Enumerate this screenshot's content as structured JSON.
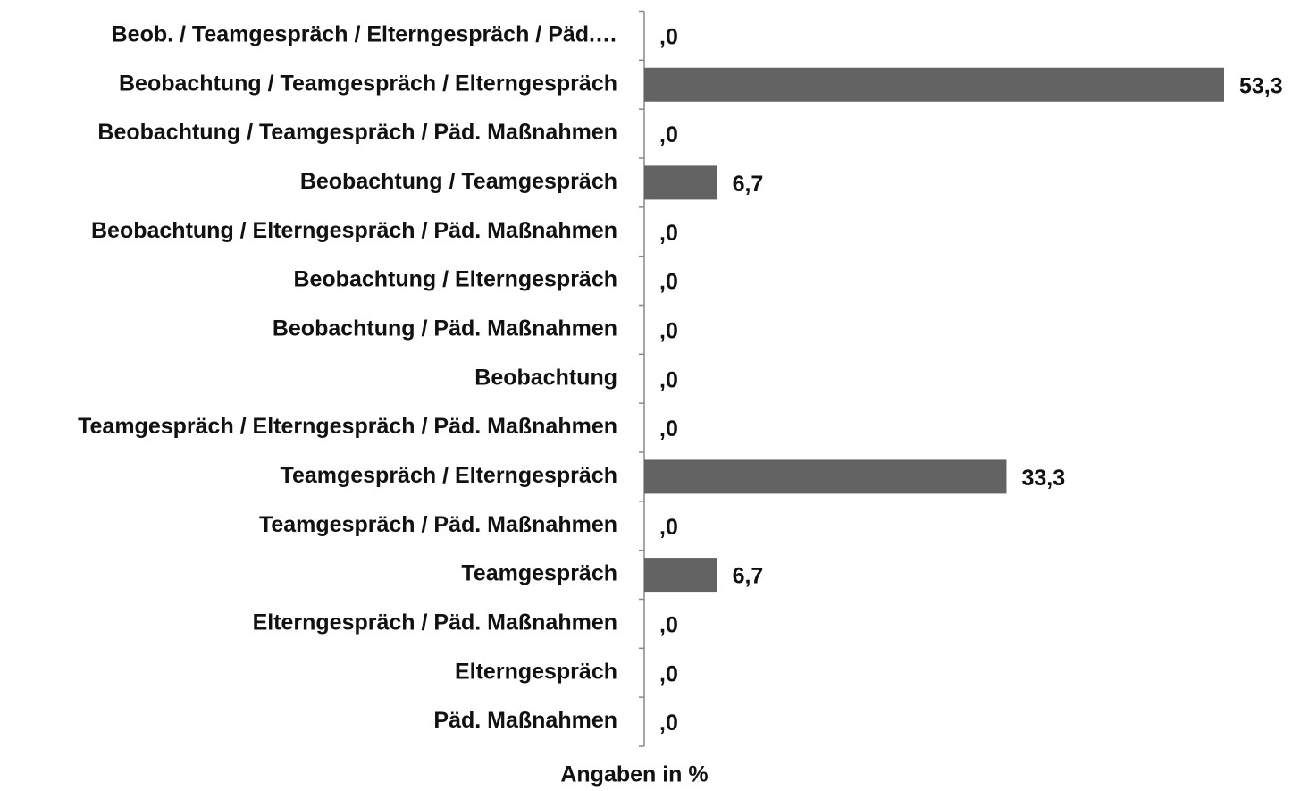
{
  "chart_data": {
    "type": "bar",
    "orientation": "horizontal",
    "x_label": "Angaben in %",
    "categories": [
      "Beob. / Teamgespräch / Elterngespräch / Päd.…",
      "Beobachtung / Teamgespräch / Elterngespräch",
      "Beobachtung / Teamgespräch / Päd. Maßnahmen",
      "Beobachtung / Teamgespräch",
      "Beobachtung / Elterngespräch / Päd. Maßnahmen",
      "Beobachtung / Elterngespräch",
      "Beobachtung / Päd. Maßnahmen",
      "Beobachtung",
      "Teamgespräch / Elterngespräch / Päd. Maßnahmen",
      "Teamgespräch / Elterngespräch",
      "Teamgespräch / Päd. Maßnahmen",
      "Teamgespräch",
      "Elterngespräch / Päd. Maßnahmen",
      "Elterngespräch",
      "Päd. Maßnahmen"
    ],
    "values": [
      0,
      53.3,
      0,
      6.7,
      0,
      0,
      0,
      0,
      0,
      33.3,
      0,
      6.7,
      0,
      0,
      0
    ],
    "value_labels": [
      ",0",
      "53,3",
      ",0",
      "6,7",
      ",0",
      ",0",
      ",0",
      ",0",
      ",0",
      "33,3",
      ",0",
      "6,7",
      ",0",
      ",0",
      ",0"
    ],
    "color": "#636363"
  }
}
